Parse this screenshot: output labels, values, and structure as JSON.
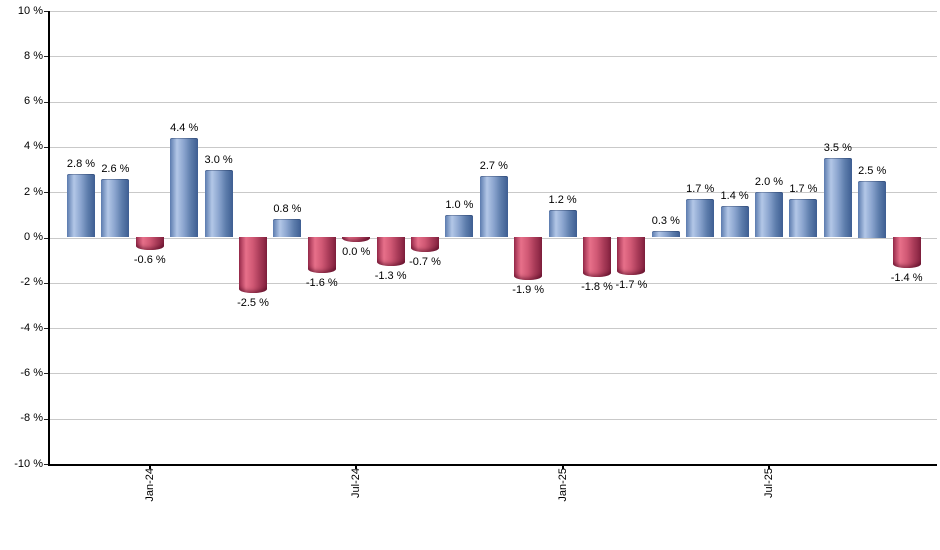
{
  "chart_data": {
    "type": "bar",
    "title": "",
    "xlabel": "",
    "ylabel": "",
    "values": [
      2.8,
      2.6,
      -0.6,
      4.4,
      3.0,
      -2.5,
      0.8,
      -1.6,
      0.0,
      -1.3,
      -0.7,
      1.0,
      2.7,
      -1.9,
      1.2,
      -1.8,
      -1.7,
      0.3,
      1.7,
      1.4,
      2.0,
      1.7,
      3.5,
      2.5,
      -1.4
    ],
    "value_labels": [
      "2.8 %",
      "2.6 %",
      "-0.6 %",
      "4.4 %",
      "3.0 %",
      "-2.5 %",
      "0.8 %",
      "-1.6 %",
      "0.0 %",
      "-1.3 %",
      "-0.7 %",
      "1.0 %",
      "2.7 %",
      "-1.9 %",
      "1.2 %",
      "-1.8 %",
      "-1.7 %",
      "0.3 %",
      "1.7 %",
      "1.4 %",
      "2.0 %",
      "1.7 %",
      "3.5 %",
      "2.5 %",
      "-1.4 %"
    ],
    "ylim": [
      -10,
      10
    ],
    "ytick_step": 2,
    "ytick_suffix": " %",
    "ytick_labels": [
      "10 %",
      "8 %",
      "6 %",
      "4 %",
      "2 %",
      "0 %",
      "-2 %",
      "-4 %",
      "-6 %",
      "-8 %",
      "-10 %"
    ],
    "x_ticks": [
      {
        "bar_index": 2,
        "label": "Jan-24"
      },
      {
        "bar_index": 8,
        "label": "Jul-24"
      },
      {
        "bar_index": 14,
        "label": "Jan-25"
      },
      {
        "bar_index": 20,
        "label": "Jul-25"
      }
    ],
    "grid": true,
    "legend": false,
    "colors": {
      "positive_gradient": [
        "#5b7bae",
        "#b3c7e7",
        "#8aa4ce",
        "#5c7cab",
        "#3e5e92"
      ],
      "negative_gradient": [
        "#9a2b4c",
        "#e7708a",
        "#d05874",
        "#a73a57",
        "#82203e"
      ],
      "gridline": "#c9c9c9",
      "axis": "#000000",
      "text": "#000000",
      "background": "#ffffff"
    }
  }
}
